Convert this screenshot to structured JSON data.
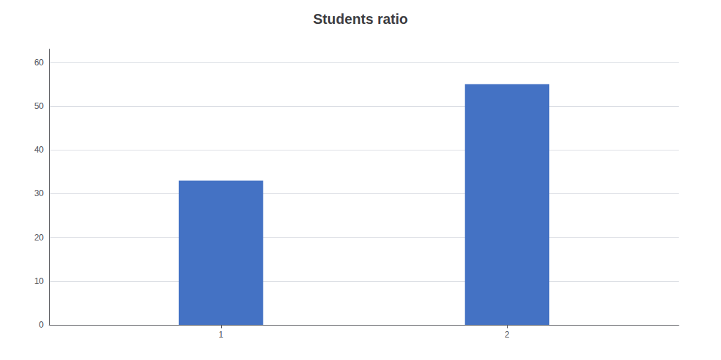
{
  "chart_data": {
    "type": "bar",
    "title": "Students ratio",
    "x": [
      1,
      2
    ],
    "values": [
      33,
      55
    ],
    "color": "#4472C4",
    "xlim": [
      0.4,
      2.6
    ],
    "xticks": [
      1,
      2
    ],
    "ylim": [
      0,
      63
    ],
    "yticks": [
      0,
      10,
      20,
      30,
      40,
      50,
      60
    ],
    "grid": true
  }
}
